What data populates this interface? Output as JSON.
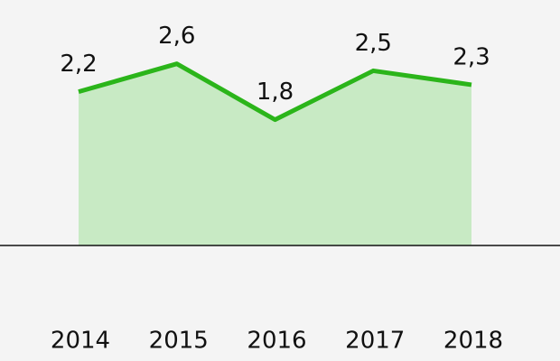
{
  "chart_data": {
    "type": "area",
    "categories": [
      "2014",
      "2015",
      "2016",
      "2017",
      "2018"
    ],
    "values": [
      2.2,
      2.6,
      1.8,
      2.5,
      2.3
    ],
    "value_labels": [
      "2,2",
      "2,6",
      "1,8",
      "2,5",
      "2,3"
    ],
    "color": "#2bb51a",
    "fill_color": "#c8eac4",
    "ylim": [
      0,
      3.5
    ]
  }
}
